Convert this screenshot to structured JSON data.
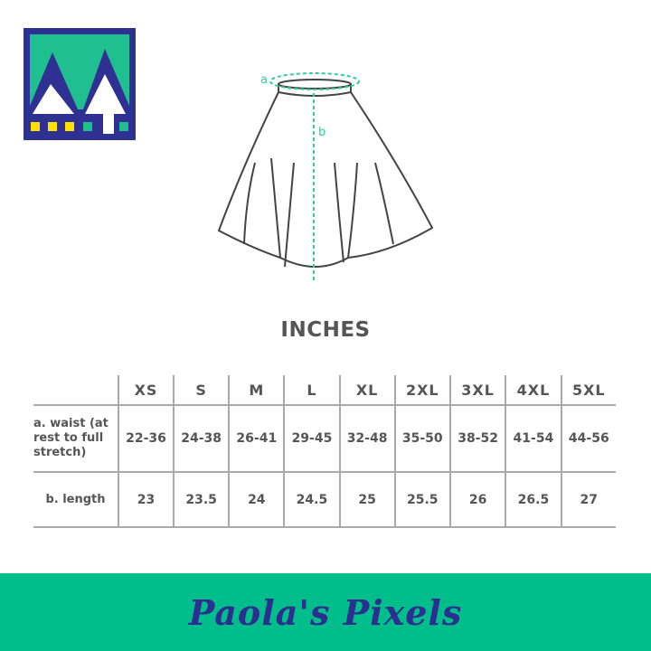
{
  "colors": {
    "navy": "#2e3192",
    "green": "#1fbf8f",
    "yellow": "#ffe000",
    "banner": "#00bd8c",
    "measure": "#2ecf97"
  },
  "diagram": {
    "label_a": "a",
    "label_b": "b"
  },
  "units": "INCHES",
  "table": {
    "sizes": [
      "XS",
      "S",
      "M",
      "L",
      "XL",
      "2XL",
      "3XL",
      "4XL",
      "5XL"
    ],
    "rows": [
      {
        "label": "a. waist (at rest to full stretch)",
        "values": [
          "22-36",
          "24-38",
          "26-41",
          "29-45",
          "32-48",
          "35-50",
          "38-52",
          "41-54",
          "44-56"
        ]
      },
      {
        "label": "b. length",
        "values": [
          "23",
          "23.5",
          "24",
          "24.5",
          "25",
          "25.5",
          "26",
          "26.5",
          "27"
        ]
      }
    ]
  },
  "brand": "Paola's Pixels"
}
